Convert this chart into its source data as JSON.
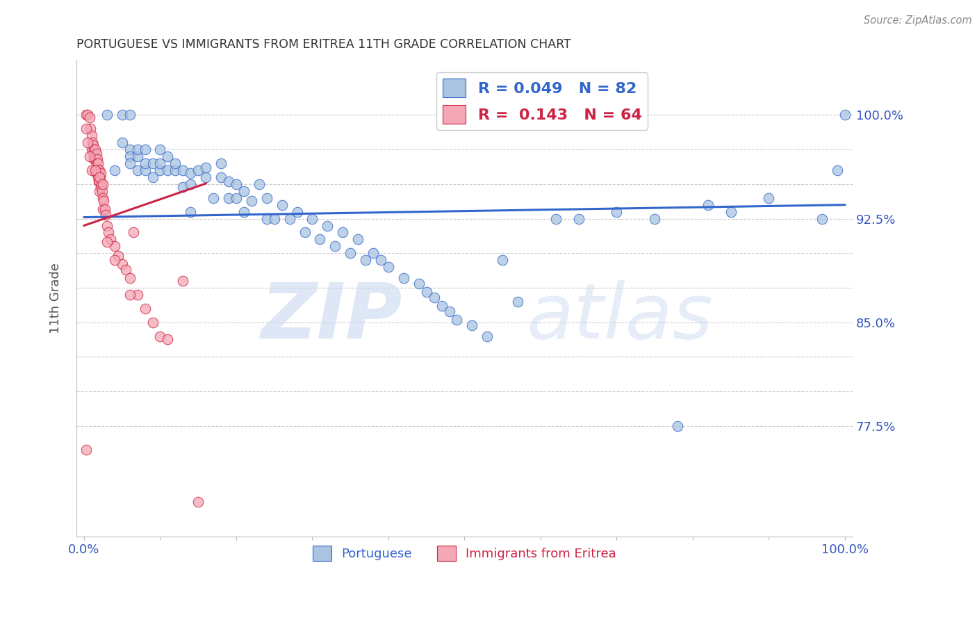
{
  "title": "PORTUGUESE VS IMMIGRANTS FROM ERITREA 11TH GRADE CORRELATION CHART",
  "source": "Source: ZipAtlas.com",
  "ylabel": "11th Grade",
  "yticks": [
    0.775,
    0.8,
    0.825,
    0.85,
    0.875,
    0.9,
    0.925,
    0.95,
    0.975,
    1.0
  ],
  "ytick_labels_right": [
    "77.5%",
    "",
    "",
    "85.0%",
    "",
    "",
    "92.5%",
    "",
    "",
    "100.0%"
  ],
  "ylim": [
    0.695,
    1.04
  ],
  "xlim": [
    -0.01,
    1.01
  ],
  "blue_color": "#A8C4E0",
  "pink_color": "#F4A7B5",
  "blue_line_color": "#3366CC",
  "pink_line_color": "#CC2244",
  "legend_blue_R": "0.049",
  "legend_blue_N": "82",
  "legend_pink_R": "0.143",
  "legend_pink_N": "64",
  "watermark_zip": "ZIP",
  "watermark_atlas": "atlas",
  "blue_x": [
    0.03,
    0.05,
    0.05,
    0.06,
    0.06,
    0.06,
    0.06,
    0.07,
    0.07,
    0.07,
    0.08,
    0.08,
    0.08,
    0.09,
    0.09,
    0.1,
    0.1,
    0.1,
    0.11,
    0.11,
    0.12,
    0.12,
    0.13,
    0.13,
    0.14,
    0.14,
    0.15,
    0.16,
    0.16,
    0.17,
    0.18,
    0.18,
    0.19,
    0.19,
    0.2,
    0.2,
    0.21,
    0.21,
    0.22,
    0.23,
    0.24,
    0.24,
    0.25,
    0.26,
    0.27,
    0.28,
    0.29,
    0.3,
    0.31,
    0.32,
    0.33,
    0.34,
    0.35,
    0.36,
    0.37,
    0.38,
    0.39,
    0.4,
    0.42,
    0.44,
    0.45,
    0.46,
    0.47,
    0.48,
    0.49,
    0.51,
    0.53,
    0.55,
    0.57,
    0.62,
    0.65,
    0.7,
    0.75,
    0.78,
    0.82,
    0.85,
    0.9,
    0.97,
    0.99,
    1.0,
    0.04,
    0.14
  ],
  "blue_y": [
    1.0,
    0.98,
    1.0,
    0.975,
    0.97,
    0.965,
    1.0,
    0.96,
    0.97,
    0.975,
    0.96,
    0.965,
    0.975,
    0.955,
    0.965,
    0.96,
    0.965,
    0.975,
    0.96,
    0.97,
    0.96,
    0.965,
    0.948,
    0.96,
    0.95,
    0.958,
    0.96,
    0.955,
    0.962,
    0.94,
    0.955,
    0.965,
    0.94,
    0.952,
    0.94,
    0.95,
    0.93,
    0.945,
    0.938,
    0.95,
    0.925,
    0.94,
    0.925,
    0.935,
    0.925,
    0.93,
    0.915,
    0.925,
    0.91,
    0.92,
    0.905,
    0.915,
    0.9,
    0.91,
    0.895,
    0.9,
    0.895,
    0.89,
    0.882,
    0.878,
    0.872,
    0.868,
    0.862,
    0.858,
    0.852,
    0.848,
    0.84,
    0.895,
    0.865,
    0.925,
    0.925,
    0.93,
    0.925,
    0.775,
    0.935,
    0.93,
    0.94,
    0.925,
    0.96,
    1.0,
    0.96,
    0.93
  ],
  "pink_x": [
    0.003,
    0.005,
    0.007,
    0.008,
    0.01,
    0.01,
    0.011,
    0.012,
    0.012,
    0.013,
    0.013,
    0.014,
    0.015,
    0.015,
    0.015,
    0.016,
    0.016,
    0.016,
    0.017,
    0.017,
    0.018,
    0.018,
    0.019,
    0.019,
    0.02,
    0.02,
    0.02,
    0.021,
    0.022,
    0.022,
    0.023,
    0.024,
    0.025,
    0.025,
    0.026,
    0.027,
    0.028,
    0.03,
    0.032,
    0.035,
    0.04,
    0.045,
    0.05,
    0.055,
    0.06,
    0.065,
    0.07,
    0.08,
    0.09,
    0.1,
    0.11,
    0.13,
    0.15,
    0.003,
    0.005,
    0.007,
    0.01,
    0.015,
    0.02,
    0.025,
    0.03,
    0.04,
    0.06,
    0.003
  ],
  "pink_y": [
    1.0,
    1.0,
    0.998,
    0.99,
    0.985,
    0.975,
    0.98,
    0.978,
    0.972,
    0.975,
    0.968,
    0.97,
    0.975,
    0.968,
    0.96,
    0.972,
    0.965,
    0.958,
    0.968,
    0.96,
    0.965,
    0.955,
    0.96,
    0.952,
    0.96,
    0.952,
    0.945,
    0.955,
    0.958,
    0.948,
    0.95,
    0.945,
    0.94,
    0.932,
    0.938,
    0.932,
    0.928,
    0.92,
    0.915,
    0.91,
    0.905,
    0.898,
    0.892,
    0.888,
    0.882,
    0.915,
    0.87,
    0.86,
    0.85,
    0.84,
    0.838,
    0.88,
    0.72,
    0.99,
    0.98,
    0.97,
    0.96,
    0.96,
    0.955,
    0.95,
    0.908,
    0.895,
    0.87,
    0.758
  ]
}
